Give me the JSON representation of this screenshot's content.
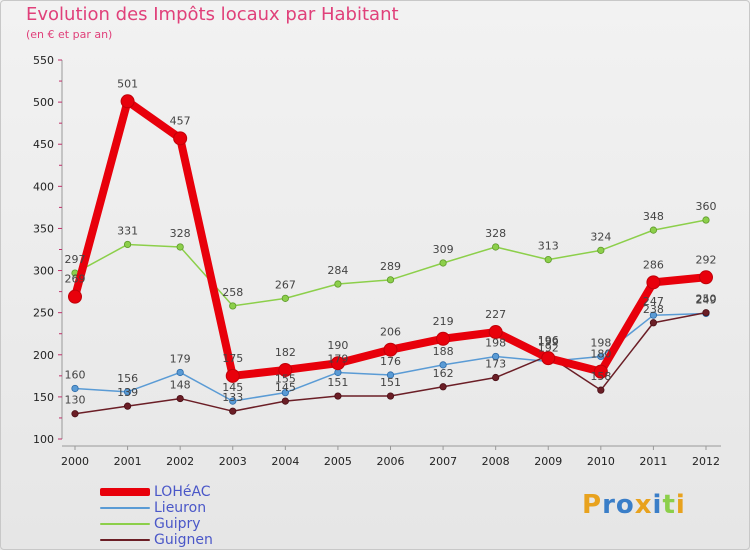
{
  "chart_data": {
    "type": "line",
    "title": "Evolution des Impôts locaux par Habitant",
    "subtitle": "(en € et par an)",
    "xlabel": "",
    "ylabel": "",
    "ylim": [
      100,
      550
    ],
    "yticks": [
      100,
      150,
      200,
      250,
      300,
      350,
      400,
      450,
      500,
      550
    ],
    "categories": [
      "2000",
      "2001",
      "2002",
      "2003",
      "2004",
      "2005",
      "2006",
      "2007",
      "2008",
      "2009",
      "2010",
      "2011",
      "2012"
    ],
    "legend_position": "bottom-left",
    "series": [
      {
        "name": "Guipry",
        "color": "#8ccf4a",
        "values": [
          297,
          331,
          328,
          258,
          267,
          284,
          289,
          309,
          328,
          313,
          324,
          348,
          360
        ]
      },
      {
        "name": "Lieuron",
        "color": "#5a9bd5",
        "values": [
          160,
          156,
          179,
          145,
          155,
          179,
          176,
          188,
          198,
          192,
          198,
          247,
          249
        ]
      },
      {
        "name": "Guignen",
        "color": "#6b1e26",
        "values": [
          130,
          139,
          148,
          133,
          145,
          151,
          151,
          162,
          173,
          199,
          158,
          238,
          250
        ]
      },
      {
        "name": "LOHéAC",
        "color": "#e8000b",
        "values": [
          269,
          501,
          457,
          175,
          182,
          190,
          206,
          219,
          227,
          196,
          180,
          286,
          292
        ]
      }
    ],
    "legend_order": [
      "LOHéAC",
      "Lieuron",
      "Guipry",
      "Guignen"
    ]
  },
  "logo": {
    "text": "Proxiti",
    "colors": [
      "#e8a21e",
      "#3a7ec8",
      "#8ccf4a"
    ]
  }
}
